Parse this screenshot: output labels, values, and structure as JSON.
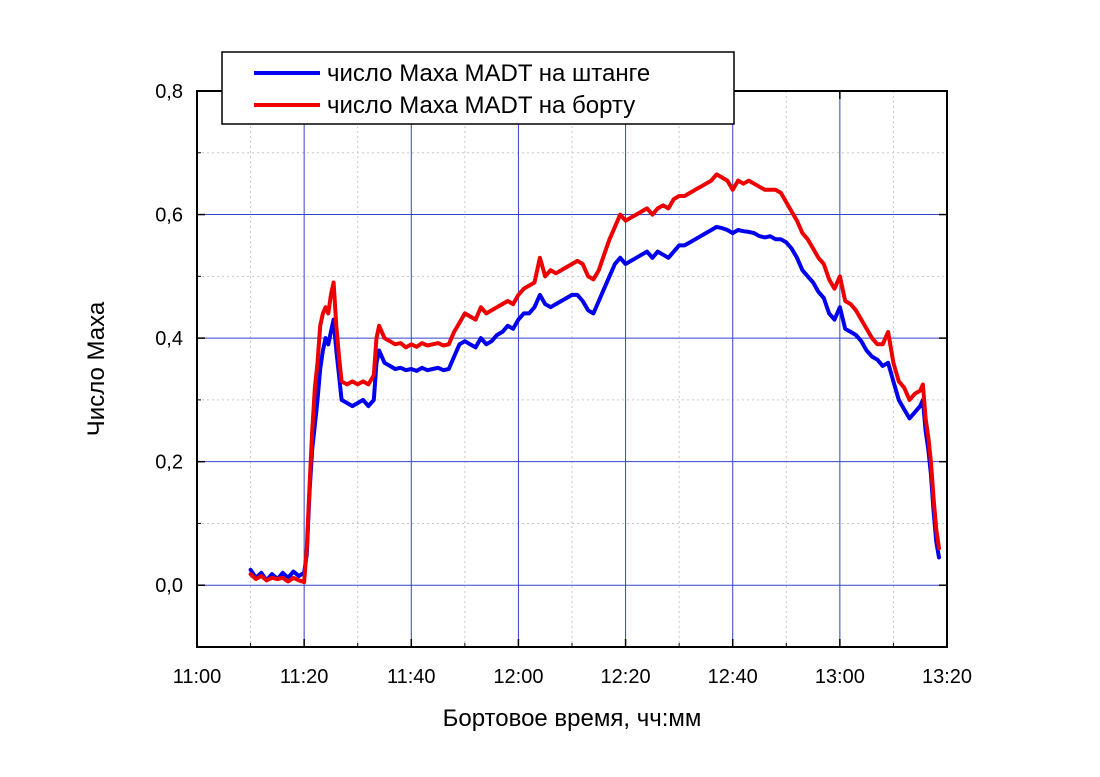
{
  "chart_data": {
    "type": "line",
    "xlabel": "Бортовое время, чч:мм",
    "ylabel": "Число Маха",
    "xlim": [
      0,
      140
    ],
    "ylim": [
      -0.1,
      0.8
    ],
    "x_ticks": [
      {
        "value": 0,
        "label": "11:00"
      },
      {
        "value": 20,
        "label": "11:20"
      },
      {
        "value": 40,
        "label": "11:40"
      },
      {
        "value": 60,
        "label": "12:00"
      },
      {
        "value": 80,
        "label": "12:20"
      },
      {
        "value": 100,
        "label": "12:40"
      },
      {
        "value": 120,
        "label": "13:00"
      },
      {
        "value": 140,
        "label": "13:20"
      }
    ],
    "y_ticks": [
      {
        "value": 0.0,
        "label": "0,0"
      },
      {
        "value": 0.2,
        "label": "0,2"
      },
      {
        "value": 0.4,
        "label": "0,4"
      },
      {
        "value": 0.6,
        "label": "0,6"
      },
      {
        "value": 0.8,
        "label": "0,8"
      }
    ],
    "grid": true,
    "legend_position": "top",
    "series": [
      {
        "name": "число Маха MADT на штанге",
        "color": "#0000ee",
        "points": [
          [
            10.0,
            0.025
          ],
          [
            11.0,
            0.012
          ],
          [
            12.0,
            0.02
          ],
          [
            13.0,
            0.008
          ],
          [
            14.0,
            0.018
          ],
          [
            15.0,
            0.01
          ],
          [
            16.0,
            0.02
          ],
          [
            17.0,
            0.012
          ],
          [
            18.0,
            0.022
          ],
          [
            19.0,
            0.015
          ],
          [
            20.0,
            0.02
          ],
          [
            20.5,
            0.05
          ],
          [
            21.0,
            0.15
          ],
          [
            21.5,
            0.22
          ],
          [
            22.0,
            0.26
          ],
          [
            22.5,
            0.3
          ],
          [
            23.0,
            0.35
          ],
          [
            23.5,
            0.38
          ],
          [
            24.0,
            0.4
          ],
          [
            24.5,
            0.39
          ],
          [
            25.0,
            0.41
          ],
          [
            25.5,
            0.43
          ],
          [
            26.0,
            0.38
          ],
          [
            26.5,
            0.34
          ],
          [
            27.0,
            0.3
          ],
          [
            28.0,
            0.295
          ],
          [
            29.0,
            0.29
          ],
          [
            30.0,
            0.295
          ],
          [
            31.0,
            0.3
          ],
          [
            32.0,
            0.29
          ],
          [
            33.0,
            0.3
          ],
          [
            33.5,
            0.36
          ],
          [
            34.0,
            0.38
          ],
          [
            35.0,
            0.36
          ],
          [
            36.0,
            0.355
          ],
          [
            37.0,
            0.35
          ],
          [
            38.0,
            0.352
          ],
          [
            39.0,
            0.348
          ],
          [
            40.0,
            0.35
          ],
          [
            41.0,
            0.347
          ],
          [
            42.0,
            0.352
          ],
          [
            43.0,
            0.348
          ],
          [
            44.0,
            0.35
          ],
          [
            45.0,
            0.352
          ],
          [
            46.0,
            0.348
          ],
          [
            47.0,
            0.35
          ],
          [
            48.0,
            0.37
          ],
          [
            49.0,
            0.39
          ],
          [
            50.0,
            0.395
          ],
          [
            51.0,
            0.39
          ],
          [
            52.0,
            0.385
          ],
          [
            53.0,
            0.4
          ],
          [
            54.0,
            0.39
          ],
          [
            55.0,
            0.395
          ],
          [
            56.0,
            0.405
          ],
          [
            57.0,
            0.41
          ],
          [
            58.0,
            0.42
          ],
          [
            59.0,
            0.415
          ],
          [
            60.0,
            0.43
          ],
          [
            61.0,
            0.44
          ],
          [
            62.0,
            0.44
          ],
          [
            63.0,
            0.45
          ],
          [
            64.0,
            0.47
          ],
          [
            65.0,
            0.455
          ],
          [
            66.0,
            0.45
          ],
          [
            67.0,
            0.455
          ],
          [
            68.0,
            0.46
          ],
          [
            69.0,
            0.465
          ],
          [
            70.0,
            0.47
          ],
          [
            71.0,
            0.47
          ],
          [
            72.0,
            0.46
          ],
          [
            73.0,
            0.445
          ],
          [
            74.0,
            0.44
          ],
          [
            75.0,
            0.46
          ],
          [
            76.0,
            0.48
          ],
          [
            77.0,
            0.5
          ],
          [
            78.0,
            0.52
          ],
          [
            79.0,
            0.53
          ],
          [
            80.0,
            0.52
          ],
          [
            81.0,
            0.525
          ],
          [
            82.0,
            0.53
          ],
          [
            83.0,
            0.535
          ],
          [
            84.0,
            0.54
          ],
          [
            85.0,
            0.53
          ],
          [
            86.0,
            0.54
          ],
          [
            87.0,
            0.535
          ],
          [
            88.0,
            0.53
          ],
          [
            89.0,
            0.54
          ],
          [
            90.0,
            0.55
          ],
          [
            91.0,
            0.55
          ],
          [
            92.0,
            0.555
          ],
          [
            93.0,
            0.56
          ],
          [
            94.0,
            0.565
          ],
          [
            95.0,
            0.57
          ],
          [
            96.0,
            0.575
          ],
          [
            97.0,
            0.58
          ],
          [
            98.0,
            0.578
          ],
          [
            99.0,
            0.575
          ],
          [
            100.0,
            0.57
          ],
          [
            101.0,
            0.575
          ],
          [
            102.0,
            0.573
          ],
          [
            103.0,
            0.572
          ],
          [
            104.0,
            0.57
          ],
          [
            105.0,
            0.565
          ],
          [
            106.0,
            0.563
          ],
          [
            107.0,
            0.565
          ],
          [
            108.0,
            0.56
          ],
          [
            109.0,
            0.56
          ],
          [
            110.0,
            0.555
          ],
          [
            111.0,
            0.545
          ],
          [
            112.0,
            0.53
          ],
          [
            113.0,
            0.51
          ],
          [
            114.0,
            0.5
          ],
          [
            115.0,
            0.49
          ],
          [
            116.0,
            0.475
          ],
          [
            117.0,
            0.465
          ],
          [
            118.0,
            0.44
          ],
          [
            119.0,
            0.43
          ],
          [
            120.0,
            0.45
          ],
          [
            121.0,
            0.415
          ],
          [
            122.0,
            0.41
          ],
          [
            123.0,
            0.405
          ],
          [
            124.0,
            0.395
          ],
          [
            125.0,
            0.38
          ],
          [
            126.0,
            0.37
          ],
          [
            127.0,
            0.365
          ],
          [
            128.0,
            0.355
          ],
          [
            129.0,
            0.36
          ],
          [
            130.0,
            0.33
          ],
          [
            131.0,
            0.3
          ],
          [
            132.0,
            0.285
          ],
          [
            133.0,
            0.27
          ],
          [
            134.0,
            0.28
          ],
          [
            135.0,
            0.29
          ],
          [
            135.5,
            0.3
          ],
          [
            136.0,
            0.25
          ],
          [
            136.5,
            0.22
          ],
          [
            137.0,
            0.18
          ],
          [
            137.5,
            0.12
          ],
          [
            138.0,
            0.07
          ],
          [
            138.5,
            0.045
          ]
        ]
      },
      {
        "name": "число Маха MADT на борту",
        "color": "#ee0000",
        "points": [
          [
            10.0,
            0.018
          ],
          [
            11.0,
            0.01
          ],
          [
            12.0,
            0.015
          ],
          [
            13.0,
            0.008
          ],
          [
            14.0,
            0.012
          ],
          [
            15.0,
            0.01
          ],
          [
            16.0,
            0.012
          ],
          [
            17.0,
            0.006
          ],
          [
            18.0,
            0.012
          ],
          [
            19.0,
            0.008
          ],
          [
            20.0,
            0.005
          ],
          [
            20.5,
            0.06
          ],
          [
            21.0,
            0.16
          ],
          [
            21.5,
            0.25
          ],
          [
            22.0,
            0.32
          ],
          [
            22.5,
            0.36
          ],
          [
            23.0,
            0.42
          ],
          [
            23.5,
            0.44
          ],
          [
            24.0,
            0.45
          ],
          [
            24.5,
            0.44
          ],
          [
            25.0,
            0.47
          ],
          [
            25.5,
            0.49
          ],
          [
            26.0,
            0.42
          ],
          [
            26.5,
            0.37
          ],
          [
            27.0,
            0.33
          ],
          [
            28.0,
            0.325
          ],
          [
            29.0,
            0.33
          ],
          [
            30.0,
            0.325
          ],
          [
            31.0,
            0.33
          ],
          [
            32.0,
            0.325
          ],
          [
            33.0,
            0.34
          ],
          [
            33.5,
            0.4
          ],
          [
            34.0,
            0.42
          ],
          [
            35.0,
            0.4
          ],
          [
            36.0,
            0.395
          ],
          [
            37.0,
            0.39
          ],
          [
            38.0,
            0.392
          ],
          [
            39.0,
            0.385
          ],
          [
            40.0,
            0.39
          ],
          [
            41.0,
            0.386
          ],
          [
            42.0,
            0.392
          ],
          [
            43.0,
            0.388
          ],
          [
            44.0,
            0.39
          ],
          [
            45.0,
            0.392
          ],
          [
            46.0,
            0.388
          ],
          [
            47.0,
            0.39
          ],
          [
            48.0,
            0.41
          ],
          [
            49.0,
            0.425
          ],
          [
            50.0,
            0.44
          ],
          [
            51.0,
            0.435
          ],
          [
            52.0,
            0.43
          ],
          [
            53.0,
            0.45
          ],
          [
            54.0,
            0.44
          ],
          [
            55.0,
            0.445
          ],
          [
            56.0,
            0.45
          ],
          [
            57.0,
            0.455
          ],
          [
            58.0,
            0.46
          ],
          [
            59.0,
            0.455
          ],
          [
            60.0,
            0.47
          ],
          [
            61.0,
            0.48
          ],
          [
            62.0,
            0.485
          ],
          [
            63.0,
            0.49
          ],
          [
            64.0,
            0.53
          ],
          [
            65.0,
            0.5
          ],
          [
            66.0,
            0.51
          ],
          [
            67.0,
            0.505
          ],
          [
            68.0,
            0.51
          ],
          [
            69.0,
            0.515
          ],
          [
            70.0,
            0.52
          ],
          [
            71.0,
            0.525
          ],
          [
            72.0,
            0.52
          ],
          [
            73.0,
            0.5
          ],
          [
            74.0,
            0.495
          ],
          [
            75.0,
            0.51
          ],
          [
            76.0,
            0.535
          ],
          [
            77.0,
            0.56
          ],
          [
            78.0,
            0.58
          ],
          [
            79.0,
            0.6
          ],
          [
            80.0,
            0.59
          ],
          [
            81.0,
            0.595
          ],
          [
            82.0,
            0.6
          ],
          [
            83.0,
            0.605
          ],
          [
            84.0,
            0.61
          ],
          [
            85.0,
            0.6
          ],
          [
            86.0,
            0.61
          ],
          [
            87.0,
            0.615
          ],
          [
            88.0,
            0.61
          ],
          [
            89.0,
            0.625
          ],
          [
            90.0,
            0.63
          ],
          [
            91.0,
            0.63
          ],
          [
            92.0,
            0.635
          ],
          [
            93.0,
            0.64
          ],
          [
            94.0,
            0.645
          ],
          [
            95.0,
            0.65
          ],
          [
            96.0,
            0.655
          ],
          [
            97.0,
            0.665
          ],
          [
            98.0,
            0.66
          ],
          [
            99.0,
            0.655
          ],
          [
            100.0,
            0.64
          ],
          [
            101.0,
            0.655
          ],
          [
            102.0,
            0.65
          ],
          [
            103.0,
            0.655
          ],
          [
            104.0,
            0.65
          ],
          [
            105.0,
            0.645
          ],
          [
            106.0,
            0.64
          ],
          [
            107.0,
            0.64
          ],
          [
            108.0,
            0.64
          ],
          [
            109.0,
            0.635
          ],
          [
            110.0,
            0.62
          ],
          [
            111.0,
            0.605
          ],
          [
            112.0,
            0.59
          ],
          [
            113.0,
            0.57
          ],
          [
            114.0,
            0.56
          ],
          [
            115.0,
            0.545
          ],
          [
            116.0,
            0.53
          ],
          [
            117.0,
            0.52
          ],
          [
            118.0,
            0.495
          ],
          [
            119.0,
            0.48
          ],
          [
            120.0,
            0.5
          ],
          [
            121.0,
            0.46
          ],
          [
            122.0,
            0.455
          ],
          [
            123.0,
            0.445
          ],
          [
            124.0,
            0.43
          ],
          [
            125.0,
            0.415
          ],
          [
            126.0,
            0.4
          ],
          [
            127.0,
            0.39
          ],
          [
            128.0,
            0.39
          ],
          [
            129.0,
            0.41
          ],
          [
            130.0,
            0.36
          ],
          [
            131.0,
            0.33
          ],
          [
            132.0,
            0.32
          ],
          [
            133.0,
            0.3
          ],
          [
            134.0,
            0.31
          ],
          [
            135.0,
            0.315
          ],
          [
            135.5,
            0.325
          ],
          [
            136.0,
            0.27
          ],
          [
            136.5,
            0.24
          ],
          [
            137.0,
            0.2
          ],
          [
            137.5,
            0.14
          ],
          [
            138.0,
            0.09
          ],
          [
            138.5,
            0.06
          ]
        ]
      }
    ]
  }
}
